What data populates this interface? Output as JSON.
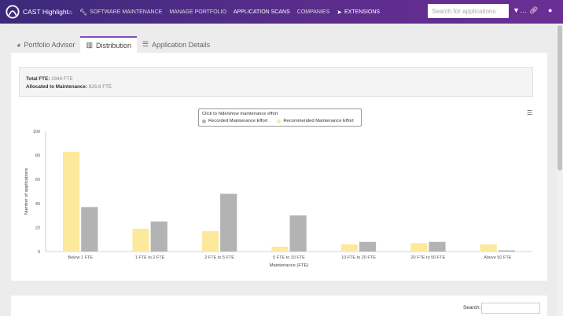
{
  "app": {
    "title": "CAST Highlight"
  },
  "nav": {
    "items": [
      {
        "label": "",
        "icon": "home-icon"
      },
      {
        "label": "SOFTWARE MAINTENANCE",
        "icon": "wrench-icon"
      },
      {
        "label": "MANAGE PORTFOLIO",
        "icon": ""
      },
      {
        "label": "APPLICATION SCANS",
        "icon": ""
      },
      {
        "label": "COMPANIES",
        "icon": ""
      },
      {
        "label": "EXTENSIONS",
        "icon": "rocket-icon"
      }
    ]
  },
  "search": {
    "placeholder": "Search for applications"
  },
  "tabs": [
    {
      "label": "Portfolio Advisor",
      "icon": "pie-chart-icon"
    },
    {
      "label": "Distribution",
      "icon": "bar-chart-icon"
    },
    {
      "label": "Application Details",
      "icon": "list-icon"
    }
  ],
  "summary": {
    "total_label": "Total FTE:",
    "total_value": "3344 FTE",
    "maint_label": "Allocated to Maintenance:",
    "maint_value": "826.6 FTE"
  },
  "legend": {
    "hint": "Click to hide/show maintenance effort"
  },
  "chart_data": {
    "type": "bar",
    "categories": [
      "Below 1 FTE",
      "1 FTE to 2 FTE",
      "2 FTE to 5 FTE",
      "5 FTE to 10 FTE",
      "10 FTE to 20 FTE",
      "20 FTE to 50 FTE",
      "Above 50 FTE"
    ],
    "series": [
      {
        "name": "Recorded Maintenance Effort",
        "color": "#b3b3b3",
        "values": [
          37,
          25,
          48,
          30,
          8,
          8,
          1
        ]
      },
      {
        "name": "Recommended Maintenance Effort",
        "color": "#fde99c",
        "values": [
          83,
          19,
          17,
          4,
          6,
          7,
          6
        ]
      }
    ],
    "xlabel": "Maintenance (FTE)",
    "ylabel": "Number of applications",
    "ylim": [
      0,
      100
    ],
    "yticks": [
      "0",
      "20",
      "40",
      "60",
      "80",
      "100"
    ],
    "grid": false,
    "legend_position": "top"
  },
  "table_search": {
    "label": "Search:"
  }
}
